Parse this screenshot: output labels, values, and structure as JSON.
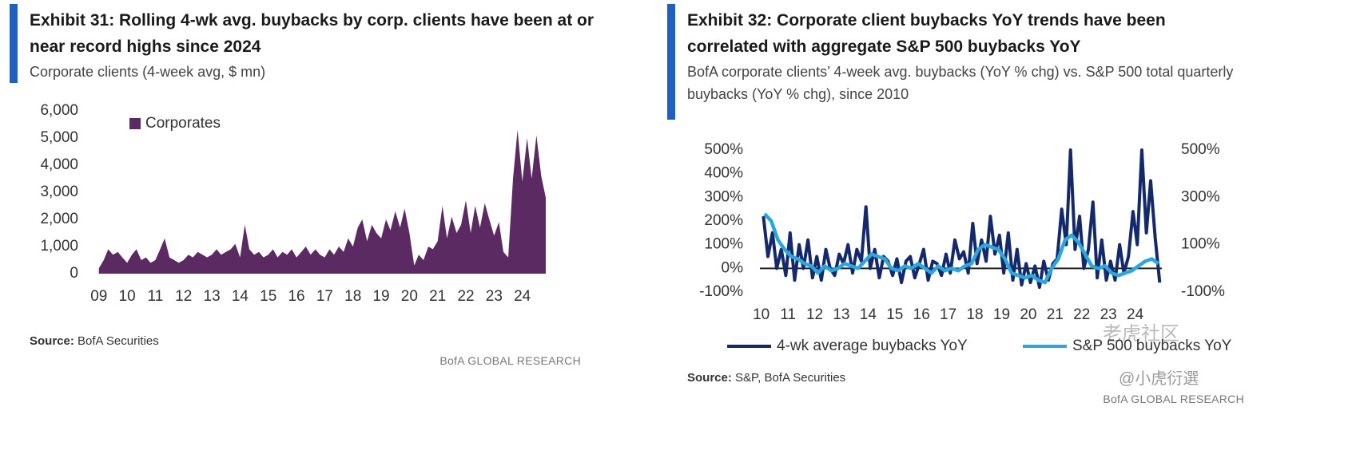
{
  "chart_data": [
    {
      "type": "area",
      "title": "Exhibit 31: Rolling 4-wk avg. buybacks by corp. clients have been at or near record highs since 2024",
      "subtitle": "Corporate clients (4-week avg, $ mn)",
      "source_label": "Source:",
      "source": "BofA Securities",
      "brand": "BofA GLOBAL RESEARCH",
      "x": [
        2009,
        2009.17,
        2009.33,
        2009.5,
        2009.67,
        2009.83,
        2010,
        2010.17,
        2010.33,
        2010.5,
        2010.67,
        2010.83,
        2011,
        2011.17,
        2011.33,
        2011.5,
        2011.67,
        2011.83,
        2012,
        2012.17,
        2012.33,
        2012.5,
        2012.67,
        2012.83,
        2013,
        2013.17,
        2013.33,
        2013.5,
        2013.67,
        2013.83,
        2014,
        2014.17,
        2014.33,
        2014.5,
        2014.67,
        2014.83,
        2015,
        2015.17,
        2015.33,
        2015.5,
        2015.67,
        2015.83,
        2016,
        2016.17,
        2016.33,
        2016.5,
        2016.67,
        2016.83,
        2017,
        2017.17,
        2017.33,
        2017.5,
        2017.67,
        2017.83,
        2018,
        2018.17,
        2018.33,
        2018.5,
        2018.67,
        2018.83,
        2019,
        2019.17,
        2019.33,
        2019.5,
        2019.67,
        2019.83,
        2020,
        2020.17,
        2020.33,
        2020.5,
        2020.67,
        2020.83,
        2021,
        2021.17,
        2021.33,
        2021.5,
        2021.67,
        2021.83,
        2022,
        2022.17,
        2022.33,
        2022.5,
        2022.67,
        2022.83,
        2023,
        2023.17,
        2023.33,
        2023.5,
        2023.67,
        2023.83,
        2024,
        2024.17,
        2024.33,
        2024.5,
        2024.67,
        2024.83
      ],
      "series": [
        {
          "name": "Corporates",
          "color": "#5b2a63",
          "values": [
            200,
            500,
            900,
            700,
            800,
            600,
            400,
            700,
            900,
            500,
            600,
            400,
            500,
            900,
            1300,
            600,
            500,
            400,
            500,
            700,
            600,
            800,
            700,
            600,
            700,
            900,
            700,
            800,
            900,
            1100,
            600,
            1800,
            900,
            700,
            800,
            600,
            700,
            900,
            600,
            800,
            700,
            900,
            600,
            800,
            1000,
            700,
            900,
            700,
            600,
            900,
            700,
            1000,
            800,
            1300,
            1000,
            1700,
            2000,
            1200,
            1800,
            1500,
            1300,
            2000,
            1600,
            2300,
            1700,
            2400,
            1500,
            300,
            700,
            500,
            1000,
            900,
            1200,
            2500,
            1300,
            2100,
            1500,
            1800,
            2700,
            1500,
            2500,
            1700,
            2600,
            2000,
            1400,
            1900,
            800,
            600,
            3500,
            5300,
            3400,
            5000,
            3500,
            5100,
            3600,
            2800
          ]
        }
      ],
      "xlim": [
        2008.95,
        2025
      ],
      "xticks": [
        {
          "value": 2009,
          "label": "09"
        },
        {
          "value": 2010,
          "label": "10"
        },
        {
          "value": 2011,
          "label": "11"
        },
        {
          "value": 2012,
          "label": "12"
        },
        {
          "value": 2013,
          "label": "13"
        },
        {
          "value": 2014,
          "label": "14"
        },
        {
          "value": 2015,
          "label": "15"
        },
        {
          "value": 2016,
          "label": "16"
        },
        {
          "value": 2017,
          "label": "17"
        },
        {
          "value": 2018,
          "label": "18"
        },
        {
          "value": 2019,
          "label": "19"
        },
        {
          "value": 2020,
          "label": "20"
        },
        {
          "value": 2021,
          "label": "21"
        },
        {
          "value": 2022,
          "label": "22"
        },
        {
          "value": 2023,
          "label": "23"
        },
        {
          "value": 2024,
          "label": "24"
        }
      ],
      "ylim": [
        0,
        6000
      ],
      "yticks": [
        0,
        {
          "value": 1000,
          "label": "1,000"
        },
        {
          "value": 2000,
          "label": "2,000"
        },
        {
          "value": 3000,
          "label": "3,000"
        },
        {
          "value": 4000,
          "label": "4,000"
        },
        {
          "value": 5000,
          "label": "5,000"
        },
        {
          "value": 6000,
          "label": "6,000"
        }
      ],
      "legend": "upper left"
    },
    {
      "type": "line",
      "title": "Exhibit 32: Corporate client buybacks YoY trends have been correlated with aggregate S&P 500 buybacks YoY",
      "subtitle": "BofA corporate clients’ 4-week avg. buybacks (YoY % chg) vs. S&P 500 total quarterly buybacks (YoY % chg), since 2010",
      "source_label": "Source:",
      "source": "S&P, BofA Securities",
      "brand": "BofA GLOBAL RESEARCH",
      "series": [
        {
          "name": "4-wk average buybacks YoY",
          "color": "#14296b",
          "x": [
            2010.08,
            2010.25,
            2010.42,
            2010.58,
            2010.75,
            2010.92,
            2011.08,
            2011.25,
            2011.42,
            2011.58,
            2011.75,
            2011.92,
            2012.08,
            2012.25,
            2012.42,
            2012.58,
            2012.75,
            2012.92,
            2013.08,
            2013.25,
            2013.42,
            2013.58,
            2013.75,
            2013.92,
            2014.08,
            2014.25,
            2014.42,
            2014.58,
            2014.75,
            2014.92,
            2015.08,
            2015.25,
            2015.42,
            2015.58,
            2015.75,
            2015.92,
            2016.08,
            2016.25,
            2016.42,
            2016.58,
            2016.75,
            2016.92,
            2017.08,
            2017.25,
            2017.42,
            2017.58,
            2017.75,
            2017.92,
            2018.08,
            2018.25,
            2018.42,
            2018.58,
            2018.75,
            2018.92,
            2019.08,
            2019.25,
            2019.42,
            2019.58,
            2019.75,
            2019.92,
            2020.08,
            2020.25,
            2020.42,
            2020.58,
            2020.75,
            2020.92,
            2021.08,
            2021.25,
            2021.42,
            2021.58,
            2021.75,
            2021.92,
            2022.08,
            2022.25,
            2022.42,
            2022.58,
            2022.75,
            2022.92,
            2023.08,
            2023.25,
            2023.42,
            2023.58,
            2023.75,
            2023.92,
            2024.08,
            2024.25,
            2024.42,
            2024.58,
            2024.75,
            2024.92
          ],
          "values": [
            220,
            50,
            150,
            0,
            80,
            -30,
            150,
            -50,
            100,
            0,
            120,
            -40,
            50,
            -50,
            80,
            0,
            -30,
            60,
            20,
            100,
            -20,
            80,
            30,
            260,
            0,
            80,
            -40,
            50,
            30,
            -30,
            40,
            -60,
            30,
            50,
            -40,
            20,
            80,
            -50,
            30,
            20,
            -30,
            60,
            -20,
            120,
            40,
            70,
            -20,
            190,
            20,
            120,
            30,
            220,
            60,
            140,
            -20,
            150,
            -50,
            80,
            -70,
            20,
            -60,
            10,
            -80,
            30,
            -50,
            20,
            40,
            250,
            100,
            500,
            80,
            220,
            0,
            80,
            280,
            -40,
            120,
            -50,
            30,
            -50,
            100,
            -20,
            50,
            240,
            100,
            500,
            150,
            370,
            130,
            -60
          ]
        },
        {
          "name": "S&P 500 buybacks YoY",
          "color": "#2aa7de",
          "axis": "y2",
          "x": [
            2010.125,
            2010.375,
            2010.625,
            2010.875,
            2011.125,
            2011.375,
            2011.625,
            2011.875,
            2012.125,
            2012.375,
            2012.625,
            2012.875,
            2013.125,
            2013.375,
            2013.625,
            2013.875,
            2014.125,
            2014.375,
            2014.625,
            2014.875,
            2015.125,
            2015.375,
            2015.625,
            2015.875,
            2016.125,
            2016.375,
            2016.625,
            2016.875,
            2017.125,
            2017.375,
            2017.625,
            2017.875,
            2018.125,
            2018.375,
            2018.625,
            2018.875,
            2019.125,
            2019.375,
            2019.625,
            2019.875,
            2020.125,
            2020.375,
            2020.625,
            2020.875,
            2021.125,
            2021.375,
            2021.625,
            2021.875,
            2022.125,
            2022.375,
            2022.625,
            2022.875,
            2023.125,
            2023.375,
            2023.625,
            2023.875,
            2024.125,
            2024.375,
            2024.625,
            2024.875
          ],
          "values": [
            230,
            200,
            120,
            80,
            50,
            40,
            20,
            10,
            -20,
            10,
            -10,
            0,
            20,
            10,
            0,
            30,
            60,
            50,
            40,
            0,
            -10,
            10,
            0,
            20,
            0,
            -20,
            10,
            -10,
            0,
            -10,
            10,
            20,
            80,
            100,
            90,
            80,
            40,
            -20,
            -30,
            -40,
            -30,
            -50,
            -60,
            0,
            40,
            120,
            140,
            110,
            60,
            10,
            0,
            10,
            -20,
            -30,
            -20,
            -10,
            10,
            30,
            40,
            20
          ]
        }
      ],
      "xlim": [
        2009.95,
        2025
      ],
      "xticks": [
        {
          "value": 2010,
          "label": "10"
        },
        {
          "value": 2011,
          "label": "11"
        },
        {
          "value": 2012,
          "label": "12"
        },
        {
          "value": 2013,
          "label": "13"
        },
        {
          "value": 2014,
          "label": "14"
        },
        {
          "value": 2015,
          "label": "15"
        },
        {
          "value": 2016,
          "label": "16"
        },
        {
          "value": 2017,
          "label": "17"
        },
        {
          "value": 2018,
          "label": "18"
        },
        {
          "value": 2019,
          "label": "19"
        },
        {
          "value": 2020,
          "label": "20"
        },
        {
          "value": 2021,
          "label": "21"
        },
        {
          "value": 2022,
          "label": "22"
        },
        {
          "value": 2023,
          "label": "23"
        },
        {
          "value": 2024,
          "label": "24"
        }
      ],
      "ylim": [
        -100,
        500
      ],
      "yticks": [
        {
          "value": -100,
          "label": "-100%"
        },
        {
          "value": 0,
          "label": "0%"
        },
        {
          "value": 100,
          "label": "100%"
        },
        {
          "value": 200,
          "label": "200%"
        },
        {
          "value": 300,
          "label": "300%"
        },
        {
          "value": 400,
          "label": "400%"
        },
        {
          "value": 500,
          "label": "500%"
        }
      ],
      "y2lim": [
        -100,
        500
      ],
      "y2ticks": [
        {
          "value": -100,
          "label": "-100%"
        },
        {
          "value": 100,
          "label": "100%"
        },
        {
          "value": 300,
          "label": "300%"
        },
        {
          "value": 500,
          "label": "500%"
        }
      ],
      "legend": "bottom",
      "watermark": [
        "老虎社区",
        "@小虎衍選"
      ]
    }
  ]
}
